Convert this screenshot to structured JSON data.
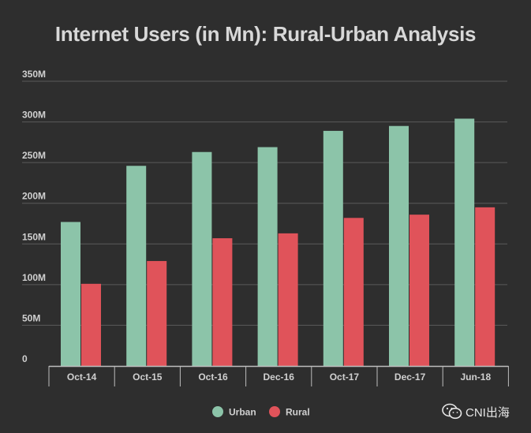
{
  "chart_data": {
    "type": "bar",
    "title": "Internet Users (in Mn): Rural-Urban Analysis",
    "categories": [
      "Oct-14",
      "Oct-15",
      "Oct-16",
      "Dec-16",
      "Oct-17",
      "Dec-17",
      "Jun-18"
    ],
    "series": [
      {
        "name": "Urban",
        "color": "#8cc4a9",
        "values": [
          177,
          246,
          263,
          269,
          289,
          295,
          304
        ]
      },
      {
        "name": "Rural",
        "color": "#e0535a",
        "values": [
          101,
          129,
          157,
          163,
          182,
          186,
          195
        ]
      }
    ],
    "y_ticks": [
      "0",
      "50M",
      "100M",
      "150M",
      "200M",
      "250M",
      "300M",
      "350M"
    ],
    "ylim": [
      0,
      350
    ],
    "grid": true,
    "legend": "bottom-center"
  },
  "watermark": {
    "text": "CNI出海",
    "icon": "wechat-icon"
  }
}
